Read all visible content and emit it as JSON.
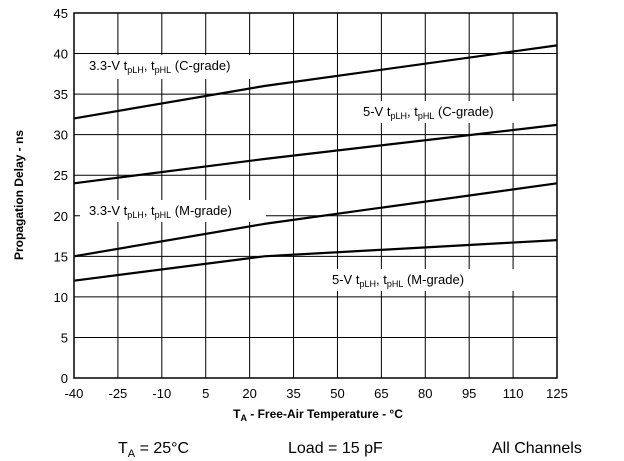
{
  "chart_data": {
    "type": "line",
    "title": "",
    "xlabel": {
      "main": "T",
      "sub": "A",
      "rest": " - Free-Air Temperature - °C"
    },
    "ylabel": "Propagation Delay - ns",
    "xlim": [
      -40,
      125
    ],
    "ylim": [
      0,
      45
    ],
    "xticks": [
      -40,
      -25,
      -10,
      5,
      20,
      35,
      50,
      65,
      80,
      95,
      110,
      125
    ],
    "yticks": [
      0,
      5,
      10,
      15,
      20,
      25,
      30,
      35,
      40,
      45
    ],
    "grid": true,
    "series": [
      {
        "name": "3.3-V tpLH, tpHL (C-grade)",
        "label": {
          "prefix": "3.3-V t",
          "sub1": "pLH",
          "mid": ", t",
          "sub2": "pHL",
          "suffix": " (C-grade)"
        },
        "x": [
          -40,
          25,
          125
        ],
        "y": [
          32,
          36,
          41
        ]
      },
      {
        "name": "5-V tpLH, tpHL (C-grade)",
        "label": {
          "prefix": "5-V t",
          "sub1": "pLH",
          "mid": ", t",
          "sub2": "pHL",
          "suffix": " (C-grade)"
        },
        "x": [
          -40,
          25,
          125
        ],
        "y": [
          24,
          27,
          31.2
        ]
      },
      {
        "name": "3.3-V tpLH, tpHL (M-grade)",
        "label": {
          "prefix": "3.3-V t",
          "sub1": "pLH",
          "mid": ", t",
          "sub2": "pHL",
          "suffix": " (M-grade)"
        },
        "x": [
          -40,
          25,
          125
        ],
        "y": [
          15,
          19,
          24
        ]
      },
      {
        "name": "5-V tpLH, tpHL (M-grade)",
        "label": {
          "prefix": "5-V t",
          "sub1": "pLH",
          "mid": ", t",
          "sub2": "pHL",
          "suffix": " (M-grade)"
        },
        "x": [
          -40,
          25,
          125
        ],
        "y": [
          12,
          15,
          17
        ]
      }
    ]
  },
  "conditions": {
    "temperature": {
      "main": "T",
      "sub": "A",
      "rest": " = 25°C"
    },
    "load": "Load = 15 pF",
    "channels": "All Channels"
  }
}
